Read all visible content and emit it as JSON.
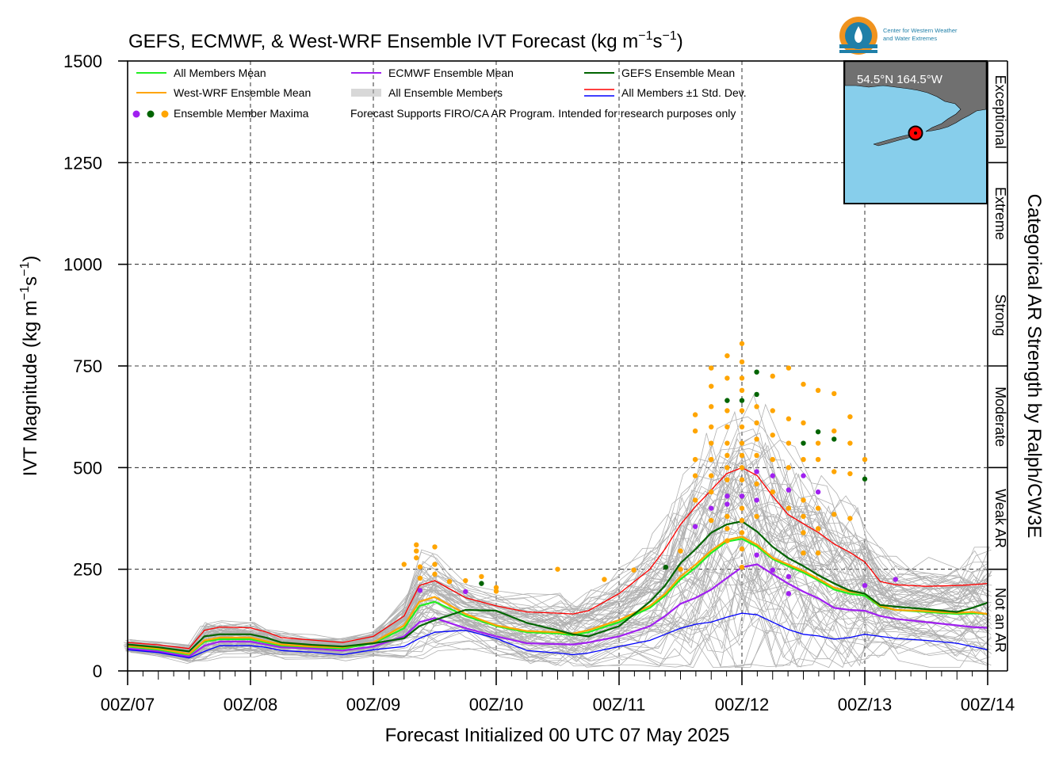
{
  "chart_data": {
    "type": "line",
    "title": "GEFS, ECMWF, & West-WRF Ensemble IVT Forecast (kg m",
    "title_exp1": "−1",
    "title_mid": "s",
    "title_exp2": "−1",
    "title_end": ")",
    "ylabel": "IVT Magnitude (kg m",
    "ylabel_exp1": "−1",
    "ylabel_mid": "s",
    "ylabel_exp2": "−1",
    "ylabel_end": ")",
    "xlabel": "Forecast Initialized 00 UTC 07 May 2025",
    "right_axis_label": "Categorical AR Strength by Ralph/CW3E",
    "ylim": [
      0,
      1500
    ],
    "xlim_days": [
      7,
      14
    ],
    "grid": true,
    "y_ticks": [
      "0",
      "250",
      "500",
      "750",
      "1000",
      "1250",
      "1500"
    ],
    "x_ticks": [
      "00Z/07",
      "00Z/08",
      "00Z/09",
      "00Z/10",
      "00Z/11",
      "00Z/12",
      "00Z/13",
      "00Z/14"
    ],
    "categories_right": [
      {
        "label": "Not an AR",
        "range": [
          0,
          250
        ]
      },
      {
        "label": "Weak AR",
        "range": [
          250,
          500
        ]
      },
      {
        "label": "Moderate",
        "range": [
          500,
          750
        ]
      },
      {
        "label": "Strong",
        "range": [
          750,
          1000
        ]
      },
      {
        "label": "Extreme",
        "range": [
          1000,
          1250
        ]
      },
      {
        "label": "Exceptional",
        "range": [
          1250,
          1500
        ]
      }
    ],
    "legend": {
      "placement": "top-left",
      "items": [
        {
          "label": "All Members Mean",
          "color": "#22ee22",
          "kind": "line"
        },
        {
          "label": "ECMWF Ensemble Mean",
          "color": "#a020f0",
          "kind": "line"
        },
        {
          "label": "GEFS Ensemble Mean",
          "color": "#006400",
          "kind": "line"
        },
        {
          "label": "West-WRF Ensemble Mean",
          "color": "#ffa500",
          "kind": "line"
        },
        {
          "label": "All Ensemble Members",
          "color": "#b0b0b0",
          "kind": "multiline"
        },
        {
          "label": "All Members ±1 Std. Dev.",
          "color": "#ff0000",
          "color2": "#0000ff",
          "kind": "doubleline"
        },
        {
          "label": "Ensemble Member Maxima",
          "colors": [
            "#a020f0",
            "#006400",
            "#ffa500"
          ],
          "kind": "dots"
        }
      ],
      "note": "Forecast Supports FIRO/CA AR Program. Intended for research purposes only"
    },
    "inset_map": {
      "label": "54.5°N 164.5°W",
      "water_color": "#87ceeb",
      "land_color": "#707070",
      "marker_color": "#ff0000"
    },
    "logo_text": [
      "Center for Western Weather",
      "and Water Extremes"
    ],
    "x": [
      7.0,
      7.25,
      7.5,
      7.625,
      7.75,
      8.0,
      8.125,
      8.25,
      8.5,
      8.75,
      9.0,
      9.25,
      9.375,
      9.5,
      9.75,
      10.0,
      10.25,
      10.5,
      10.625,
      10.75,
      11.0,
      11.25,
      11.375,
      11.5,
      11.625,
      11.75,
      11.875,
      12.0,
      12.125,
      12.25,
      12.375,
      12.5,
      12.625,
      12.75,
      12.875,
      13.0,
      13.125,
      13.25,
      13.5,
      13.75,
      13.875,
      14.0
    ],
    "series": [
      {
        "name": "All Members Mean",
        "color": "#22ee22",
        "width": 2.2,
        "values": [
          60,
          52,
          40,
          72,
          78,
          78,
          70,
          62,
          58,
          55,
          68,
          105,
          160,
          170,
          135,
          110,
          95,
          92,
          88,
          95,
          120,
          155,
          185,
          225,
          255,
          290,
          318,
          325,
          305,
          275,
          258,
          242,
          222,
          200,
          190,
          185,
          158,
          150,
          145,
          140,
          142,
          140
        ]
      },
      {
        "name": "West-WRF Ensemble Mean",
        "color": "#ffa500",
        "width": 2.2,
        "values": [
          62,
          55,
          42,
          75,
          82,
          82,
          73,
          65,
          60,
          58,
          70,
          112,
          170,
          182,
          140,
          112,
          98,
          95,
          92,
          100,
          125,
          160,
          190,
          232,
          262,
          296,
          322,
          330,
          310,
          278,
          262,
          246,
          226,
          205,
          195,
          190,
          160,
          150,
          147,
          143,
          145,
          140
        ]
      },
      {
        "name": "ECMWF Ensemble Mean",
        "color": "#a020f0",
        "width": 2.2,
        "values": [
          55,
          48,
          35,
          62,
          72,
          72,
          65,
          58,
          55,
          50,
          60,
          85,
          120,
          130,
          105,
          85,
          68,
          66,
          65,
          70,
          85,
          110,
          135,
          165,
          180,
          200,
          228,
          255,
          262,
          238,
          215,
          195,
          178,
          155,
          150,
          148,
          135,
          128,
          120,
          112,
          108,
          106
        ]
      },
      {
        "name": "GEFS Ensemble Mean",
        "color": "#006400",
        "width": 2.2,
        "values": [
          65,
          58,
          48,
          85,
          90,
          90,
          82,
          70,
          64,
          60,
          68,
          80,
          110,
          125,
          150,
          148,
          118,
          100,
          90,
          85,
          110,
          170,
          210,
          265,
          300,
          340,
          360,
          368,
          342,
          305,
          278,
          258,
          235,
          215,
          198,
          190,
          162,
          158,
          152,
          145,
          155,
          168
        ]
      },
      {
        "name": "All Members +1 Std. Dev.",
        "color": "#ff0000",
        "width": 1.3,
        "values": [
          70,
          64,
          55,
          100,
          108,
          106,
          96,
          82,
          76,
          70,
          85,
          135,
          210,
          222,
          180,
          160,
          145,
          142,
          140,
          148,
          190,
          250,
          300,
          360,
          405,
          445,
          485,
          500,
          480,
          430,
          385,
          362,
          340,
          312,
          292,
          268,
          220,
          212,
          208,
          210,
          212,
          215
        ]
      },
      {
        "name": "All Members -1 Std. Dev.",
        "color": "#0000ff",
        "width": 1.3,
        "values": [
          52,
          45,
          32,
          48,
          62,
          62,
          58,
          50,
          46,
          40,
          52,
          60,
          80,
          95,
          100,
          80,
          50,
          44,
          40,
          44,
          60,
          75,
          90,
          105,
          115,
          120,
          132,
          142,
          138,
          120,
          102,
          90,
          86,
          78,
          82,
          90,
          85,
          80,
          75,
          68,
          60,
          52
        ]
      }
    ],
    "maxima_points": [
      {
        "x": 9.25,
        "y": 262,
        "c": "#ffa500"
      },
      {
        "x": 9.35,
        "y": 310,
        "c": "#ffa500"
      },
      {
        "x": 9.35,
        "y": 295,
        "c": "#ffa500"
      },
      {
        "x": 9.35,
        "y": 278,
        "c": "#ffa500"
      },
      {
        "x": 9.38,
        "y": 256,
        "c": "#ffa500"
      },
      {
        "x": 9.38,
        "y": 228,
        "c": "#ffa500"
      },
      {
        "x": 9.38,
        "y": 198,
        "c": "#a020f0"
      },
      {
        "x": 9.5,
        "y": 305,
        "c": "#ffa500"
      },
      {
        "x": 9.5,
        "y": 262,
        "c": "#ffa500"
      },
      {
        "x": 9.5,
        "y": 238,
        "c": "#ffa500"
      },
      {
        "x": 9.62,
        "y": 220,
        "c": "#ffa500"
      },
      {
        "x": 9.75,
        "y": 222,
        "c": "#ffa500"
      },
      {
        "x": 9.75,
        "y": 195,
        "c": "#a020f0"
      },
      {
        "x": 9.88,
        "y": 232,
        "c": "#ffa500"
      },
      {
        "x": 9.88,
        "y": 215,
        "c": "#006400"
      },
      {
        "x": 10.0,
        "y": 205,
        "c": "#ffa500"
      },
      {
        "x": 10.0,
        "y": 196,
        "c": "#ffa500"
      },
      {
        "x": 10.5,
        "y": 250,
        "c": "#ffa500"
      },
      {
        "x": 10.88,
        "y": 225,
        "c": "#ffa500"
      },
      {
        "x": 11.12,
        "y": 248,
        "c": "#ffa500"
      },
      {
        "x": 11.38,
        "y": 255,
        "c": "#006400"
      },
      {
        "x": 11.5,
        "y": 295,
        "c": "#ffa500"
      },
      {
        "x": 11.5,
        "y": 250,
        "c": "#ffa500"
      },
      {
        "x": 11.62,
        "y": 630,
        "c": "#ffa500"
      },
      {
        "x": 11.62,
        "y": 590,
        "c": "#ffa500"
      },
      {
        "x": 11.62,
        "y": 520,
        "c": "#ffa500"
      },
      {
        "x": 11.62,
        "y": 480,
        "c": "#ffa500"
      },
      {
        "x": 11.62,
        "y": 420,
        "c": "#ffa500"
      },
      {
        "x": 11.62,
        "y": 355,
        "c": "#a020f0"
      },
      {
        "x": 11.75,
        "y": 745,
        "c": "#ffa500"
      },
      {
        "x": 11.75,
        "y": 700,
        "c": "#ffa500"
      },
      {
        "x": 11.75,
        "y": 650,
        "c": "#ffa500"
      },
      {
        "x": 11.75,
        "y": 600,
        "c": "#ffa500"
      },
      {
        "x": 11.75,
        "y": 560,
        "c": "#ffa500"
      },
      {
        "x": 11.75,
        "y": 520,
        "c": "#ffa500"
      },
      {
        "x": 11.75,
        "y": 480,
        "c": "#ffa500"
      },
      {
        "x": 11.75,
        "y": 440,
        "c": "#ffa500"
      },
      {
        "x": 11.75,
        "y": 400,
        "c": "#a020f0"
      },
      {
        "x": 11.75,
        "y": 370,
        "c": "#ffa500"
      },
      {
        "x": 11.88,
        "y": 775,
        "c": "#ffa500"
      },
      {
        "x": 11.88,
        "y": 720,
        "c": "#ffa500"
      },
      {
        "x": 11.88,
        "y": 665,
        "c": "#006400"
      },
      {
        "x": 11.88,
        "y": 640,
        "c": "#ffa500"
      },
      {
        "x": 11.88,
        "y": 600,
        "c": "#ffa500"
      },
      {
        "x": 11.88,
        "y": 560,
        "c": "#ffa500"
      },
      {
        "x": 11.88,
        "y": 530,
        "c": "#ffa500"
      },
      {
        "x": 11.88,
        "y": 500,
        "c": "#ffa500"
      },
      {
        "x": 11.88,
        "y": 470,
        "c": "#ffa500"
      },
      {
        "x": 11.88,
        "y": 430,
        "c": "#a020f0"
      },
      {
        "x": 11.88,
        "y": 410,
        "c": "#a020f0"
      },
      {
        "x": 11.88,
        "y": 380,
        "c": "#ffa500"
      },
      {
        "x": 11.88,
        "y": 350,
        "c": "#ffa500"
      },
      {
        "x": 11.88,
        "y": 320,
        "c": "#ffa500"
      },
      {
        "x": 12.0,
        "y": 805,
        "c": "#ffa500"
      },
      {
        "x": 12.0,
        "y": 760,
        "c": "#ffa500"
      },
      {
        "x": 12.0,
        "y": 720,
        "c": "#ffa500"
      },
      {
        "x": 12.0,
        "y": 690,
        "c": "#ffa500"
      },
      {
        "x": 12.0,
        "y": 665,
        "c": "#006400"
      },
      {
        "x": 12.0,
        "y": 640,
        "c": "#ffa500"
      },
      {
        "x": 12.0,
        "y": 600,
        "c": "#ffa500"
      },
      {
        "x": 12.0,
        "y": 560,
        "c": "#ffa500"
      },
      {
        "x": 12.0,
        "y": 530,
        "c": "#ffa500"
      },
      {
        "x": 12.0,
        "y": 500,
        "c": "#ffa500"
      },
      {
        "x": 12.0,
        "y": 470,
        "c": "#ffa500"
      },
      {
        "x": 12.0,
        "y": 430,
        "c": "#a020f0"
      },
      {
        "x": 12.0,
        "y": 400,
        "c": "#ffa500"
      },
      {
        "x": 12.0,
        "y": 370,
        "c": "#ffa500"
      },
      {
        "x": 12.0,
        "y": 340,
        "c": "#ffa500"
      },
      {
        "x": 12.0,
        "y": 300,
        "c": "#ffa500"
      },
      {
        "x": 12.0,
        "y": 255,
        "c": "#ffa500"
      },
      {
        "x": 12.12,
        "y": 735,
        "c": "#006400"
      },
      {
        "x": 12.12,
        "y": 680,
        "c": "#006400"
      },
      {
        "x": 12.12,
        "y": 650,
        "c": "#ffa500"
      },
      {
        "x": 12.12,
        "y": 610,
        "c": "#ffa500"
      },
      {
        "x": 12.12,
        "y": 570,
        "c": "#ffa500"
      },
      {
        "x": 12.12,
        "y": 530,
        "c": "#ffa500"
      },
      {
        "x": 12.12,
        "y": 490,
        "c": "#a020f0"
      },
      {
        "x": 12.12,
        "y": 460,
        "c": "#ffa500"
      },
      {
        "x": 12.12,
        "y": 420,
        "c": "#a020f0"
      },
      {
        "x": 12.12,
        "y": 380,
        "c": "#ffa500"
      },
      {
        "x": 12.25,
        "y": 725,
        "c": "#ffa500"
      },
      {
        "x": 12.25,
        "y": 640,
        "c": "#ffa500"
      },
      {
        "x": 12.25,
        "y": 580,
        "c": "#ffa500"
      },
      {
        "x": 12.25,
        "y": 520,
        "c": "#ffa500"
      },
      {
        "x": 12.25,
        "y": 480,
        "c": "#a020f0"
      },
      {
        "x": 12.25,
        "y": 440,
        "c": "#ffa500"
      },
      {
        "x": 12.38,
        "y": 745,
        "c": "#ffa500"
      },
      {
        "x": 12.38,
        "y": 620,
        "c": "#ffa500"
      },
      {
        "x": 12.38,
        "y": 560,
        "c": "#ffa500"
      },
      {
        "x": 12.38,
        "y": 500,
        "c": "#ffa500"
      },
      {
        "x": 12.38,
        "y": 445,
        "c": "#a020f0"
      },
      {
        "x": 12.38,
        "y": 400,
        "c": "#ffa500"
      },
      {
        "x": 12.5,
        "y": 705,
        "c": "#ffa500"
      },
      {
        "x": 12.5,
        "y": 610,
        "c": "#ffa500"
      },
      {
        "x": 12.5,
        "y": 560,
        "c": "#006400"
      },
      {
        "x": 12.5,
        "y": 520,
        "c": "#ffa500"
      },
      {
        "x": 12.5,
        "y": 480,
        "c": "#a020f0"
      },
      {
        "x": 12.5,
        "y": 420,
        "c": "#ffa500"
      },
      {
        "x": 12.5,
        "y": 380,
        "c": "#ffa500"
      },
      {
        "x": 12.5,
        "y": 340,
        "c": "#ffa500"
      },
      {
        "x": 12.5,
        "y": 290,
        "c": "#ffa500"
      },
      {
        "x": 12.62,
        "y": 690,
        "c": "#ffa500"
      },
      {
        "x": 12.62,
        "y": 588,
        "c": "#006400"
      },
      {
        "x": 12.62,
        "y": 560,
        "c": "#ffa500"
      },
      {
        "x": 12.62,
        "y": 520,
        "c": "#ffa500"
      },
      {
        "x": 12.62,
        "y": 440,
        "c": "#a020f0"
      },
      {
        "x": 12.62,
        "y": 400,
        "c": "#ffa500"
      },
      {
        "x": 12.62,
        "y": 350,
        "c": "#ffa500"
      },
      {
        "x": 12.62,
        "y": 290,
        "c": "#ffa500"
      },
      {
        "x": 12.75,
        "y": 682,
        "c": "#ffa500"
      },
      {
        "x": 12.75,
        "y": 590,
        "c": "#ffa500"
      },
      {
        "x": 12.75,
        "y": 570,
        "c": "#006400"
      },
      {
        "x": 12.75,
        "y": 490,
        "c": "#ffa500"
      },
      {
        "x": 12.75,
        "y": 385,
        "c": "#ffa500"
      },
      {
        "x": 12.88,
        "y": 625,
        "c": "#ffa500"
      },
      {
        "x": 12.88,
        "y": 560,
        "c": "#ffa500"
      },
      {
        "x": 12.88,
        "y": 485,
        "c": "#ffa500"
      },
      {
        "x": 12.88,
        "y": 375,
        "c": "#ffa500"
      },
      {
        "x": 13.0,
        "y": 520,
        "c": "#ffa500"
      },
      {
        "x": 13.0,
        "y": 472,
        "c": "#006400"
      },
      {
        "x": 13.0,
        "y": 210,
        "c": "#a020f0"
      },
      {
        "x": 13.25,
        "y": 225,
        "c": "#a020f0"
      },
      {
        "x": 12.38,
        "y": 190,
        "c": "#a020f0"
      },
      {
        "x": 12.38,
        "y": 232,
        "c": "#a020f0"
      },
      {
        "x": 12.12,
        "y": 285,
        "c": "#a020f0"
      },
      {
        "x": 12.25,
        "y": 248,
        "c": "#a020f0"
      }
    ]
  }
}
